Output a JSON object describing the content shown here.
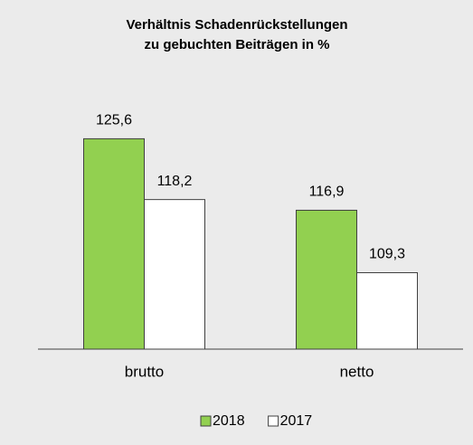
{
  "chart_data": {
    "type": "bar",
    "title": [
      "Verhältnis Schadenrückstellungen",
      "zu gebuchten Beiträgen in %"
    ],
    "categories": [
      "brutto",
      "netto"
    ],
    "series": [
      {
        "name": "2018",
        "color": "#92d050",
        "values": [
          125.6,
          116.9
        ],
        "value_labels": [
          "125,6",
          "116,9"
        ]
      },
      {
        "name": "2017",
        "color": "#ffffff",
        "values": [
          118.2,
          109.3
        ],
        "value_labels": [
          "118,2",
          "109,3"
        ]
      }
    ],
    "ylim": [
      100,
      135
    ],
    "legend": "bottom"
  }
}
